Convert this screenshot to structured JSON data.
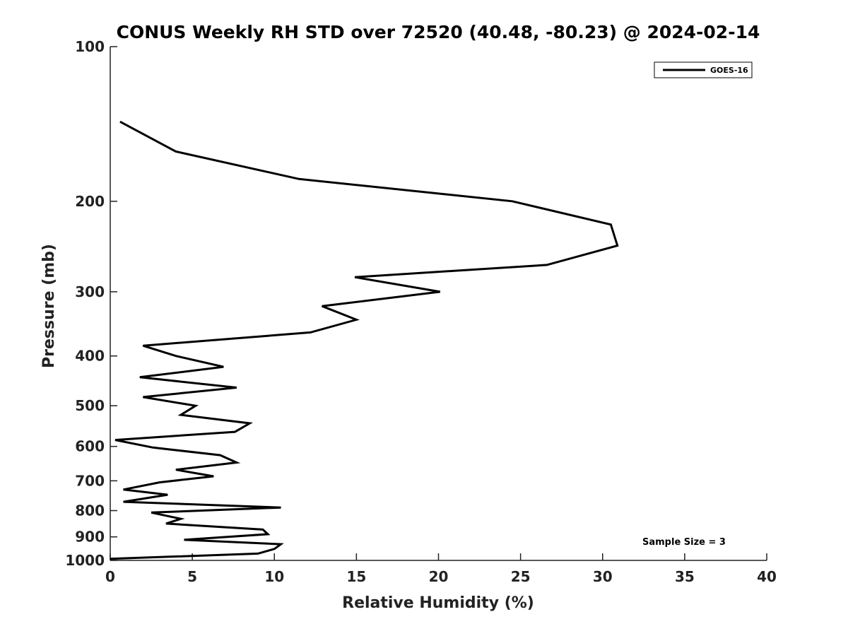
{
  "chart_data": {
    "type": "line",
    "title": "CONUS Weekly RH STD over 72520 (40.48, -80.23) @ 2024-02-14",
    "xlabel": "Relative Humidity (%)",
    "ylabel": "Pressure (mb)",
    "xlim": [
      0,
      40
    ],
    "ylim": [
      100,
      1000
    ],
    "yscale": "log",
    "x_ticks": [
      0,
      5,
      10,
      15,
      20,
      25,
      30,
      35,
      40
    ],
    "x_tick_labels": [
      "0",
      "5",
      "10",
      "15",
      "20",
      "25",
      "30",
      "35",
      "40"
    ],
    "y_ticks": [
      100,
      200,
      300,
      400,
      500,
      600,
      700,
      800,
      900,
      1000
    ],
    "y_tick_labels": [
      "100",
      "200",
      "300",
      "400",
      "500",
      "600",
      "700",
      "800",
      "900",
      "1000"
    ],
    "grid": false,
    "legend_position": "top-right",
    "annotation": "Sample Size = 3",
    "series": [
      {
        "name": "GOES-16",
        "color": "#000000",
        "points": [
          [
            0.6,
            140
          ],
          [
            4.0,
            160
          ],
          [
            11.5,
            181
          ],
          [
            24.5,
            200
          ],
          [
            30.5,
            222
          ],
          [
            30.9,
            244
          ],
          [
            26.6,
            266
          ],
          [
            14.9,
            281
          ],
          [
            20.1,
            300
          ],
          [
            12.9,
            320
          ],
          [
            15.0,
            340
          ],
          [
            12.2,
            360
          ],
          [
            2.0,
            382
          ],
          [
            4.0,
            400
          ],
          [
            6.9,
            420
          ],
          [
            1.8,
            440
          ],
          [
            7.7,
            461
          ],
          [
            2.0,
            481
          ],
          [
            5.2,
            500
          ],
          [
            4.3,
            521
          ],
          [
            8.5,
            541
          ],
          [
            7.6,
            562
          ],
          [
            0.3,
            583
          ],
          [
            2.6,
            603
          ],
          [
            6.7,
            624
          ],
          [
            7.7,
            645
          ],
          [
            4.0,
            666
          ],
          [
            6.3,
            686
          ],
          [
            3.0,
            705
          ],
          [
            0.8,
            728
          ],
          [
            3.5,
            745
          ],
          [
            0.8,
            769
          ],
          [
            10.4,
            789
          ],
          [
            2.5,
            807
          ],
          [
            4.3,
            830
          ],
          [
            3.4,
            848
          ],
          [
            9.3,
            871
          ],
          [
            9.6,
            889
          ],
          [
            4.5,
            912
          ],
          [
            10.4,
            930
          ],
          [
            10.0,
            950
          ],
          [
            9.0,
            970
          ],
          [
            0.0,
            993
          ]
        ]
      }
    ]
  }
}
